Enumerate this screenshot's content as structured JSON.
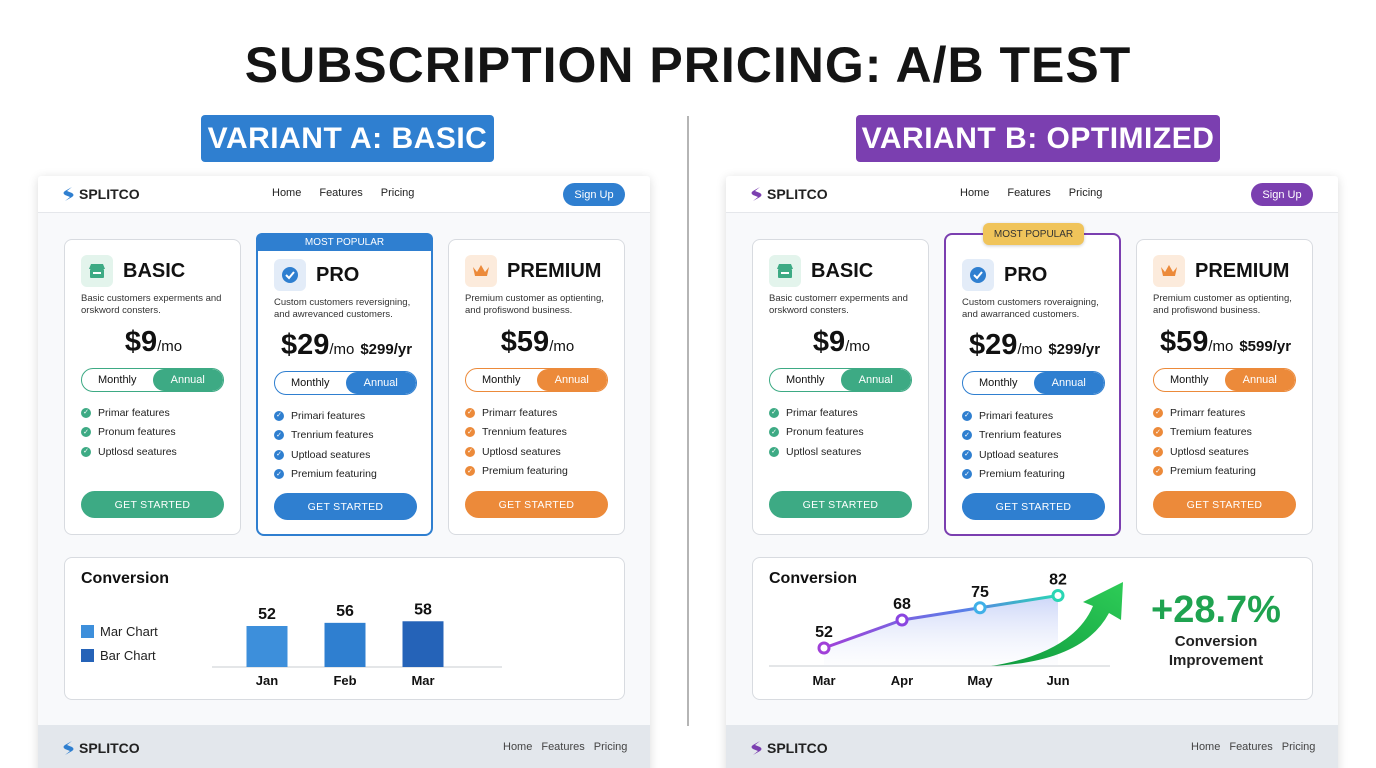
{
  "title": "SUBSCRIPTION PRICING: A/B TEST",
  "variants": [
    {
      "label": "VARIANT A: BASIC",
      "accent": "#2f7fd0",
      "brand": "SPLITCO",
      "nav": [
        "Home",
        "Features",
        "Pricing"
      ],
      "signup": "Sign Up",
      "popular_badge": "MOST POPULAR",
      "plans": [
        {
          "name": "BASIC",
          "icon": "storefront-icon",
          "color": "#3daa84",
          "desc": "Basic customers experments and orskword consters.",
          "price": "$9",
          "per": "/mo",
          "yearly": "",
          "toggle": [
            "Monthly",
            "Annual"
          ],
          "features": [
            "Primar features",
            "Pronum features",
            "Uptlosd seatures"
          ],
          "cta": "GET STARTED"
        },
        {
          "name": "PRO",
          "icon": "verified-badge-icon",
          "color": "#2f7fd0",
          "desc": "Custom customers reversigning, and awrevanced customers.",
          "price": "$29",
          "per": "/mo",
          "yearly": "$299/yr",
          "toggle": [
            "Monthly",
            "Annual"
          ],
          "features": [
            "Primari features",
            "Trenrium features",
            "Uptload seatures",
            "Premium featuring"
          ],
          "cta": "GET STARTED"
        },
        {
          "name": "PREMIUM",
          "icon": "crown-icon",
          "color": "#ec8a3a",
          "desc": "Premium customer as optienting, and profiswond business.",
          "price": "$59",
          "per": "/mo",
          "yearly": "",
          "toggle": [
            "Monthly",
            "Annual"
          ],
          "features": [
            "Primarr features",
            "Trennium features",
            "Uptlosd seatures",
            "Premium featuring"
          ],
          "cta": "GET STARTED"
        }
      ],
      "conversion": {
        "title": "Conversion",
        "legend": [
          "Mar Chart",
          "Bar Chart"
        ],
        "legend_colors": [
          "#3d8fdb",
          "#2563b8"
        ]
      },
      "footer": {
        "brand": "SPLITCO",
        "nav": [
          "Home",
          "Features",
          "Pricing"
        ]
      }
    },
    {
      "label": "VARIANT B: OPTIMIZED",
      "accent": "#7b3fb0",
      "brand": "SPLITCO",
      "nav": [
        "Home",
        "Features",
        "Pricing"
      ],
      "signup": "Sign Up",
      "popular_badge": "MOST POPULAR",
      "plans": [
        {
          "name": "BASIC",
          "icon": "storefront-icon",
          "color": "#3daa84",
          "desc": "Basic customerr experments and orskword consters.",
          "price": "$9",
          "per": "/mo",
          "yearly": "",
          "toggle": [
            "Monthly",
            "Annual"
          ],
          "features": [
            "Primar features",
            "Pronum features",
            "Uptlosl seatures"
          ],
          "cta": "GET STARTED"
        },
        {
          "name": "PRO",
          "icon": "verified-badge-icon",
          "color": "#2f7fd0",
          "desc": "Custom customers roveraigning, and awarranced customers.",
          "price": "$29",
          "per": "/mo",
          "yearly": "$299/yr",
          "toggle": [
            "Monthly",
            "Annual"
          ],
          "features": [
            "Primari features",
            "Trenrium features",
            "Uptload seatures",
            "Premium featuring"
          ],
          "cta": "GET STARTED"
        },
        {
          "name": "PREMIUM",
          "icon": "crown-icon",
          "color": "#ec8a3a",
          "desc": "Premium customer as optienting, and profiswond business.",
          "price": "$59",
          "per": "/mo",
          "yearly": "$599/yr",
          "toggle": [
            "Monthly",
            "Annual"
          ],
          "features": [
            "Primarr features",
            "Tremium features",
            "Uptlosd seatures",
            "Premium featuring"
          ],
          "cta": "GET STARTED"
        }
      ],
      "conversion": {
        "title": "Conversion",
        "improvement": "+28.7%",
        "improvement_label_1": "Conversion",
        "improvement_label_2": "Improvement"
      },
      "footer": {
        "brand": "SPLITCO",
        "nav": [
          "Home",
          "Features",
          "Pricing"
        ]
      }
    }
  ],
  "chart_data": [
    {
      "type": "bar",
      "categories": [
        "Jan",
        "Feb",
        "Mar"
      ],
      "values": [
        52,
        56,
        58
      ],
      "legend": [
        "Mar Chart",
        "Bar Chart"
      ],
      "data_labels": true,
      "colors": [
        "#3d8fdb",
        "#2f7fd0",
        "#2563b8"
      ]
    },
    {
      "type": "line",
      "x": [
        "Mar",
        "Apr",
        "May",
        "Jun"
      ],
      "series": [
        {
          "values": [
            52,
            68,
            75,
            82
          ]
        }
      ],
      "data_labels": true,
      "colors": [
        "#a040d8",
        "#8a45e0",
        "#3fb0e8",
        "#2ad6b4"
      ]
    }
  ]
}
